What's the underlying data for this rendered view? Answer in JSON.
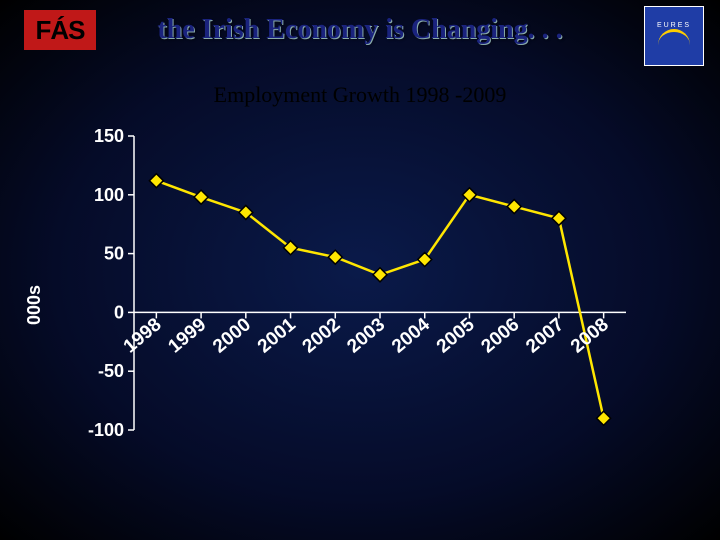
{
  "title": "the Irish Economy is Changing. . .",
  "subtitle": "Employment Growth 1998 -2009",
  "logos": {
    "fas": "FÁS",
    "eures": "EURES"
  },
  "chart": {
    "type": "line",
    "ylabel": "000s",
    "x_categories": [
      "1998",
      "1999",
      "2000",
      "2001",
      "2002",
      "2003",
      "2004",
      "2005",
      "2006",
      "2007",
      "2008"
    ],
    "values": [
      112,
      98,
      85,
      55,
      47,
      32,
      45,
      100,
      90,
      80,
      -90
    ],
    "ylim": [
      -100,
      150
    ],
    "y_ticks": [
      -100,
      -50,
      0,
      50,
      100,
      150
    ],
    "line_color": "#ffe600",
    "marker_fill": "#ffe600",
    "marker_stroke": "#000000",
    "marker_size": 7,
    "axis_color": "#ffffff",
    "text_color": "#ffffff",
    "background": "radial-gradient(#0a1a4a,#000000)",
    "label_fontsize": 18,
    "xlabel_rotation_deg": -40
  }
}
